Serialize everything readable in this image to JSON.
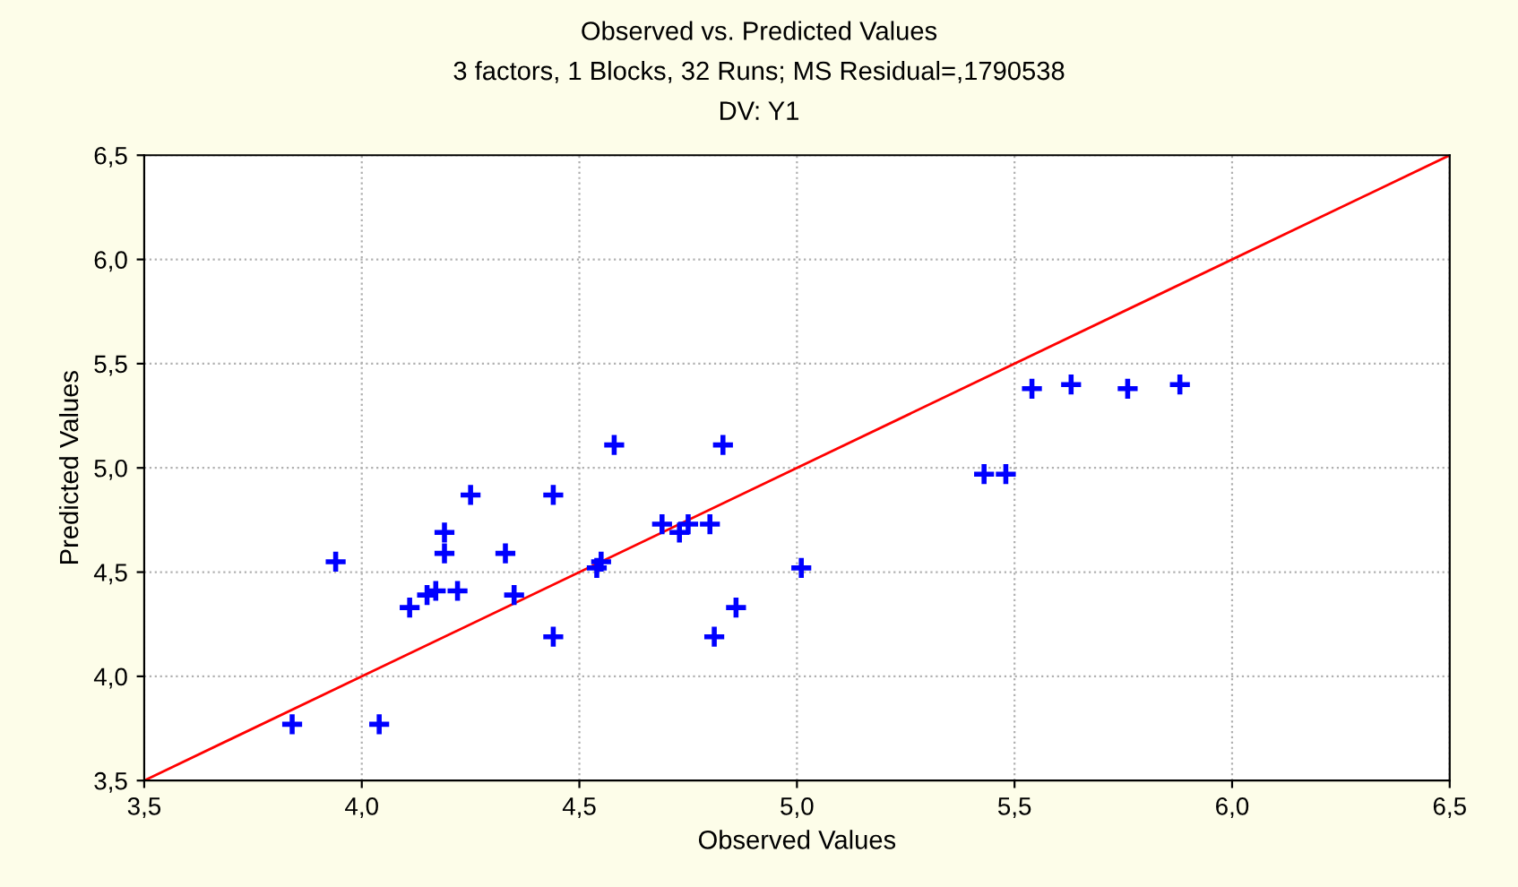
{
  "chart_data": {
    "type": "scatter",
    "title": "Observed vs. Predicted Values",
    "subtitle": "3 factors, 1 Blocks, 32 Runs; MS Residual=,1790538",
    "annotations": [
      "DV: Y1"
    ],
    "xlabel": "Observed Values",
    "ylabel": "Predicted Values",
    "x": [
      4.58,
      4.83,
      4.25,
      4.44,
      4.19,
      4.19,
      4.33,
      3.94,
      4.69,
      4.73,
      4.75,
      4.8,
      4.55,
      4.54,
      5.01,
      4.11,
      4.15,
      4.17,
      4.22,
      4.35,
      4.86,
      4.44,
      4.81,
      3.84,
      4.04,
      5.43,
      5.48,
      5.54,
      5.63,
      5.76,
      5.88
    ],
    "series": [
      {
        "color": "#0000ff",
        "marker": "cross",
        "values": [
          5.11,
          5.11,
          4.87,
          4.87,
          4.69,
          4.59,
          4.59,
          4.55,
          4.73,
          4.69,
          4.73,
          4.73,
          4.55,
          4.52,
          4.52,
          4.33,
          4.39,
          4.41,
          4.41,
          4.39,
          4.33,
          4.19,
          4.19,
          3.77,
          3.77,
          4.97,
          4.97,
          5.38,
          5.4,
          5.38,
          5.4
        ]
      },
      {
        "type": "line",
        "color": "#ff0000",
        "marker": "none",
        "line_style": "solid",
        "x": [
          3.5,
          6.5
        ],
        "values": [
          3.5,
          6.5
        ]
      }
    ],
    "xlim": [
      3.5,
      6.5
    ],
    "ylim": [
      3.5,
      6.5
    ],
    "xticks": [
      {
        "value": 3.5,
        "label": "3,5"
      },
      {
        "value": 4.0,
        "label": "4,0"
      },
      {
        "value": 4.5,
        "label": "4,5"
      },
      {
        "value": 5.0,
        "label": "5,0"
      },
      {
        "value": 5.5,
        "label": "5,5"
      },
      {
        "value": 6.0,
        "label": "6,0"
      },
      {
        "value": 6.5,
        "label": "6,5"
      }
    ],
    "yticks": [
      {
        "value": 3.5,
        "label": "3,5"
      },
      {
        "value": 4.0,
        "label": "4,0"
      },
      {
        "value": 4.5,
        "label": "4,5"
      },
      {
        "value": 5.0,
        "label": "5,0"
      },
      {
        "value": 5.5,
        "label": "5,5"
      },
      {
        "value": 6.0,
        "label": "6,0"
      },
      {
        "value": 6.5,
        "label": "6,5"
      }
    ],
    "grid": true,
    "legend": false
  }
}
